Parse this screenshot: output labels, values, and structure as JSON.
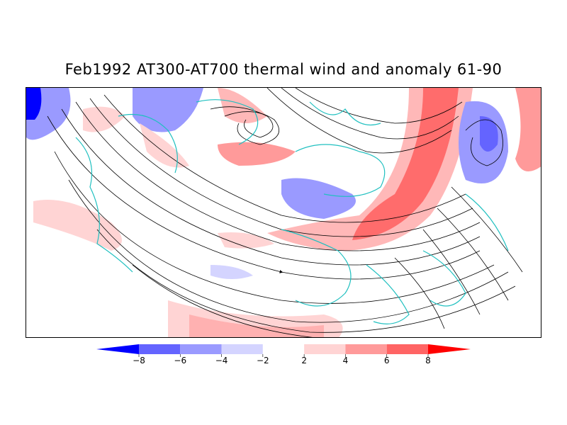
{
  "title": "Feb1992 AT300-AT700 thermal wind and anomaly 61-90",
  "map": {
    "projection": "polar-stereographic-northern-hemisphere",
    "field": "thermal wind streamlines with anomaly shading",
    "coastline_color": "#20c0c0",
    "streamline_color": "#000000"
  },
  "colorbar": {
    "colors": [
      "#0000ff",
      "#6464ff",
      "#9a9aff",
      "#d4d4ff",
      "#ffffff",
      "#ffd4d4",
      "#ff9a9a",
      "#ff6464",
      "#ff0000"
    ],
    "labels": [
      "-8",
      "-6",
      "-4",
      "-2",
      "2",
      "4",
      "6",
      "8"
    ]
  }
}
